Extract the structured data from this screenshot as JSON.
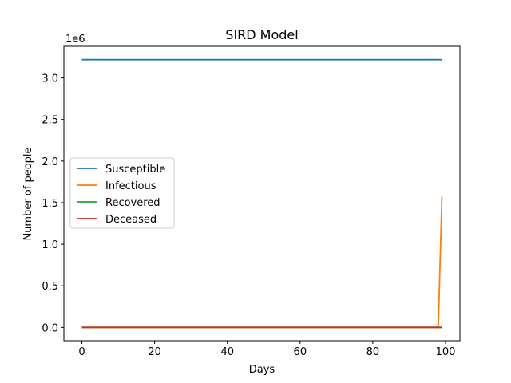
{
  "chart_data": {
    "type": "line",
    "title": "SIRD Model",
    "xlabel": "Days",
    "ylabel": "Number of people",
    "offset_text": "1e6",
    "xlim": [
      -4.95,
      103.95
    ],
    "ylim": [
      -0.16,
      3.38
    ],
    "y_scale_note": "values in millions (1e6)",
    "x_ticks": [
      0,
      20,
      40,
      60,
      80,
      100
    ],
    "x_tick_labels": [
      "0",
      "20",
      "40",
      "60",
      "80",
      "100"
    ],
    "y_ticks": [
      0.0,
      0.5,
      1.0,
      1.5,
      2.0,
      2.5,
      3.0
    ],
    "y_tick_labels": [
      "0.0",
      "0.5",
      "1.0",
      "1.5",
      "2.0",
      "2.5",
      "3.0"
    ],
    "grid": false,
    "legend_position": "center-left",
    "series": [
      {
        "name": "Susceptible",
        "color": "#1f77b4",
        "points": [
          [
            0,
            3.22
          ],
          [
            99,
            3.22
          ]
        ]
      },
      {
        "name": "Infectious",
        "color": "#ff7f0e",
        "points": [
          [
            0,
            0.0
          ],
          [
            98,
            0.0
          ],
          [
            99,
            1.57
          ]
        ]
      },
      {
        "name": "Recovered",
        "color": "#2ca02c",
        "points": [
          [
            0,
            0.0
          ],
          [
            99,
            0.0
          ]
        ]
      },
      {
        "name": "Deceased",
        "color": "#d62728",
        "points": [
          [
            0,
            0.0
          ],
          [
            99,
            0.0
          ]
        ]
      }
    ]
  }
}
